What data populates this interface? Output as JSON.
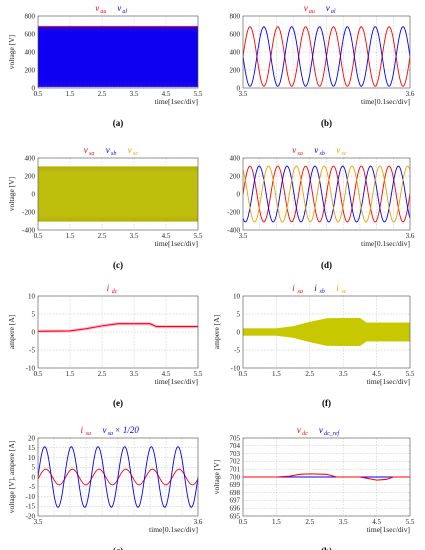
{
  "chart_data": [
    {
      "id": "a",
      "caption": "(a)",
      "type": "line",
      "ylabel": "voltage [V]",
      "xlabel": "time[1sec/div]",
      "xlim": [
        0.5,
        5.5
      ],
      "ylim": [
        0,
        800
      ],
      "xticks": [
        "0.5",
        "1.5",
        "2.5",
        "3.5",
        "4.5",
        "5.5"
      ],
      "yticks": [
        "0",
        "200",
        "400",
        "600",
        "800"
      ],
      "legend": [
        {
          "base": "v",
          "sub": "au",
          "color": "#ff0000"
        },
        {
          "base": "v",
          "sub": "al",
          "color": "#0000ff"
        }
      ],
      "series": [
        {
          "name": "v_au",
          "color": "#ff0000",
          "kind": "dense_band",
          "low": 20,
          "high": 690
        },
        {
          "name": "v_al",
          "color": "#0000ff",
          "kind": "dense_band",
          "low": 10,
          "high": 680
        }
      ]
    },
    {
      "id": "b",
      "caption": "(b)",
      "type": "line",
      "ylabel": "",
      "xlabel": "time[0.1sec/div]",
      "xlim": [
        3.5,
        3.6
      ],
      "ylim": [
        0,
        800
      ],
      "xticks": [
        "3.5",
        "3.6"
      ],
      "yticks": [
        "0",
        "200",
        "400",
        "600",
        "800"
      ],
      "legend": [
        {
          "base": "v",
          "sub": "au",
          "color": "#ff0000"
        },
        {
          "base": "v",
          "sub": "al",
          "color": "#0000ff"
        }
      ],
      "series": [
        {
          "name": "v_au",
          "color": "#ff0000",
          "kind": "sine",
          "offset": 350,
          "amplitude": 330,
          "cycles": 6,
          "phase": 0
        },
        {
          "name": "v_al",
          "color": "#0000ff",
          "kind": "sine",
          "offset": 350,
          "amplitude": 330,
          "cycles": 6,
          "phase": 180
        }
      ]
    },
    {
      "id": "c",
      "caption": "(c)",
      "type": "line",
      "ylabel": "voltage [V]",
      "xlabel": "time[1sec/div]",
      "xlim": [
        0.5,
        5.5
      ],
      "ylim": [
        -400,
        400
      ],
      "xticks": [
        "0.5",
        "1.5",
        "2.5",
        "3.5",
        "4.5",
        "5.5"
      ],
      "yticks": [
        "-400",
        "-200",
        "0",
        "200",
        "400"
      ],
      "legend": [
        {
          "base": "v",
          "sub": "sa",
          "color": "#ff0000"
        },
        {
          "base": "v",
          "sub": "sb",
          "color": "#0000ff"
        },
        {
          "base": "v",
          "sub": "sc",
          "color": "#e8a000"
        }
      ],
      "series": [
        {
          "name": "v_sa",
          "color": "#ff0000",
          "kind": "dense_band",
          "low": -300,
          "high": 300
        },
        {
          "name": "v_sb",
          "color": "#0000ff",
          "kind": "dense_band",
          "low": -300,
          "high": 300
        },
        {
          "name": "v_sc",
          "color": "#c8c800",
          "kind": "dense_band",
          "low": -310,
          "high": 310
        }
      ]
    },
    {
      "id": "d",
      "caption": "(d)",
      "type": "line",
      "ylabel": "",
      "xlabel": "time[0.1sec/div]",
      "xlim": [
        3.5,
        3.6
      ],
      "ylim": [
        -400,
        400
      ],
      "xticks": [
        "3.5",
        "3.6"
      ],
      "yticks": [
        "-400",
        "-200",
        "0",
        "200",
        "400"
      ],
      "legend": [
        {
          "base": "v",
          "sub": "sa",
          "color": "#ff0000"
        },
        {
          "base": "v",
          "sub": "sb",
          "color": "#0000ff"
        },
        {
          "base": "v",
          "sub": "sc",
          "color": "#e8a000"
        }
      ],
      "series": [
        {
          "name": "v_sa",
          "color": "#ff0000",
          "kind": "sine",
          "offset": 0,
          "amplitude": 310,
          "cycles": 6,
          "phase": 0
        },
        {
          "name": "v_sb",
          "color": "#0000ff",
          "kind": "sine",
          "offset": 0,
          "amplitude": 310,
          "cycles": 6,
          "phase": -120
        },
        {
          "name": "v_sc",
          "color": "#e8a000",
          "kind": "sine",
          "offset": 0,
          "amplitude": 310,
          "cycles": 6,
          "phase": 120
        }
      ]
    },
    {
      "id": "e",
      "caption": "(e)",
      "type": "line",
      "ylabel": "ampere [A]",
      "xlabel": "time[1sec/div]",
      "xlim": [
        0.5,
        5.5
      ],
      "ylim": [
        -10,
        10
      ],
      "xticks": [
        "0.5",
        "1.5",
        "2.5",
        "3.5",
        "4.5",
        "5.5"
      ],
      "yticks": [
        "-10",
        "-5",
        "0",
        "5",
        "10"
      ],
      "legend": [
        {
          "base": "i",
          "sub": "dc",
          "color": "#ff0000"
        }
      ],
      "series": [
        {
          "name": "i_dc",
          "color": "#ff0000",
          "kind": "piecewise",
          "x": [
            0.5,
            1.5,
            2.0,
            2.5,
            3.0,
            3.5,
            4.0,
            4.2,
            5.5
          ],
          "y": [
            0.2,
            0.3,
            0.9,
            1.7,
            2.3,
            2.3,
            2.3,
            1.5,
            1.5
          ]
        }
      ]
    },
    {
      "id": "f",
      "caption": "(f)",
      "type": "line",
      "ylabel": "ampere [A]",
      "xlabel": "time[1sec/div]",
      "xlim": [
        0.5,
        5.5
      ],
      "ylim": [
        -10,
        10
      ],
      "xticks": [
        "0.5",
        "1.5",
        "2.5",
        "3.5",
        "4.5",
        "5.5"
      ],
      "yticks": [
        "-10",
        "-5",
        "0",
        "5",
        "10"
      ],
      "legend": [
        {
          "base": "i",
          "sub": "sa",
          "color": "#ff0000"
        },
        {
          "base": "i",
          "sub": "sb",
          "color": "#0000ff"
        },
        {
          "base": "i",
          "sub": "sc",
          "color": "#e8a000"
        }
      ],
      "series": [
        {
          "name": "i_s",
          "color": "#c8c800",
          "kind": "dense_envelope",
          "x": [
            0.5,
            1.5,
            2.0,
            2.5,
            3.0,
            3.5,
            4.0,
            4.2,
            5.5
          ],
          "amp": [
            1.0,
            1.0,
            1.6,
            2.8,
            3.8,
            3.9,
            3.9,
            2.6,
            2.6
          ]
        }
      ]
    },
    {
      "id": "g",
      "caption": "(g)",
      "type": "line",
      "ylabel": "voltage [V], ampere [A]",
      "xlabel": "time[0.1sec/div]",
      "xlim": [
        3.5,
        3.6
      ],
      "ylim": [
        -20,
        20
      ],
      "xticks": [
        "3.5",
        "3.6"
      ],
      "yticks": [
        "-20",
        "-15",
        "-10",
        "-5",
        "0",
        "5",
        "10",
        "15",
        "20"
      ],
      "legend": [
        {
          "base": "i",
          "sub": "sa",
          "color": "#ff0000",
          "suffix": ""
        },
        {
          "base": "v",
          "sub": "sa",
          "color": "#0000ff",
          "suffix": " × 1/20"
        }
      ],
      "series": [
        {
          "name": "i_sa",
          "color": "#ff0000",
          "kind": "sine",
          "offset": 0,
          "amplitude": 4,
          "cycles": 6,
          "phase": -15
        },
        {
          "name": "v_sa/20",
          "color": "#0000ff",
          "kind": "sine",
          "offset": 0,
          "amplitude": 15.5,
          "cycles": 6,
          "phase": 0
        }
      ]
    },
    {
      "id": "h",
      "caption": "(h)",
      "type": "line",
      "ylabel": "voltage [V]",
      "xlabel": "time[1sec/div]",
      "xlim": [
        0.5,
        5.5
      ],
      "ylim": [
        695,
        705
      ],
      "xticks": [
        "0.5",
        "1.5",
        "2.5",
        "3.5",
        "4.5",
        "5.5"
      ],
      "yticks": [
        "695",
        "696",
        "697",
        "698",
        "699",
        "700",
        "701",
        "702",
        "703",
        "704",
        "705"
      ],
      "legend": [
        {
          "base": "v",
          "sub": "dc",
          "color": "#ff0000"
        },
        {
          "base": "v",
          "sub": "dc_ref",
          "color": "#0000ff"
        }
      ],
      "series": [
        {
          "name": "v_dc_ref",
          "color": "#0000ff",
          "kind": "piecewise",
          "x": [
            0.5,
            5.5
          ],
          "y": [
            700,
            700
          ]
        },
        {
          "name": "v_dc",
          "color": "#ff0000",
          "kind": "piecewise",
          "x": [
            0.5,
            1.5,
            1.9,
            2.2,
            2.5,
            3.0,
            3.3,
            3.6,
            4.0,
            4.2,
            4.5,
            4.8,
            5.0,
            5.5
          ],
          "y": [
            700,
            700,
            700.1,
            700.35,
            700.4,
            700.35,
            700,
            700,
            700,
            699.85,
            699.6,
            699.7,
            700,
            700
          ]
        }
      ]
    }
  ]
}
